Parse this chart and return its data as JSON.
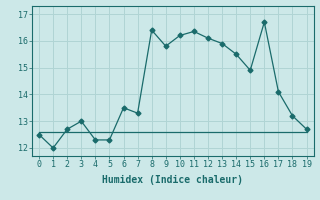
{
  "xlabel": "Humidex (Indice chaleur)",
  "ylabel": "",
  "line1_x": [
    0,
    1,
    2,
    3,
    4,
    5,
    6,
    7,
    8,
    9,
    10,
    11,
    12,
    13,
    14,
    15,
    16,
    17,
    18,
    19
  ],
  "line1_y": [
    12.5,
    12.0,
    12.7,
    13.0,
    12.3,
    12.3,
    13.5,
    13.3,
    16.4,
    15.8,
    16.2,
    16.35,
    16.1,
    15.9,
    15.5,
    14.9,
    16.7,
    14.1,
    13.2,
    12.7
  ],
  "line2_x": [
    0,
    2,
    10,
    16,
    19
  ],
  "line2_y": [
    12.6,
    12.6,
    12.6,
    12.6,
    12.6
  ],
  "line_color": "#1a6b6b",
  "bg_color": "#cce8e8",
  "grid_color": "#b0d4d4",
  "marker": "D",
  "marker_size": 2.5,
  "xlim": [
    -0.5,
    19.5
  ],
  "ylim": [
    11.7,
    17.3
  ],
  "yticks": [
    12,
    13,
    14,
    15,
    16,
    17
  ],
  "xticks": [
    0,
    1,
    2,
    3,
    4,
    5,
    6,
    7,
    8,
    9,
    10,
    11,
    12,
    13,
    14,
    15,
    16,
    17,
    18,
    19
  ],
  "tick_fontsize": 6,
  "label_fontsize": 7
}
